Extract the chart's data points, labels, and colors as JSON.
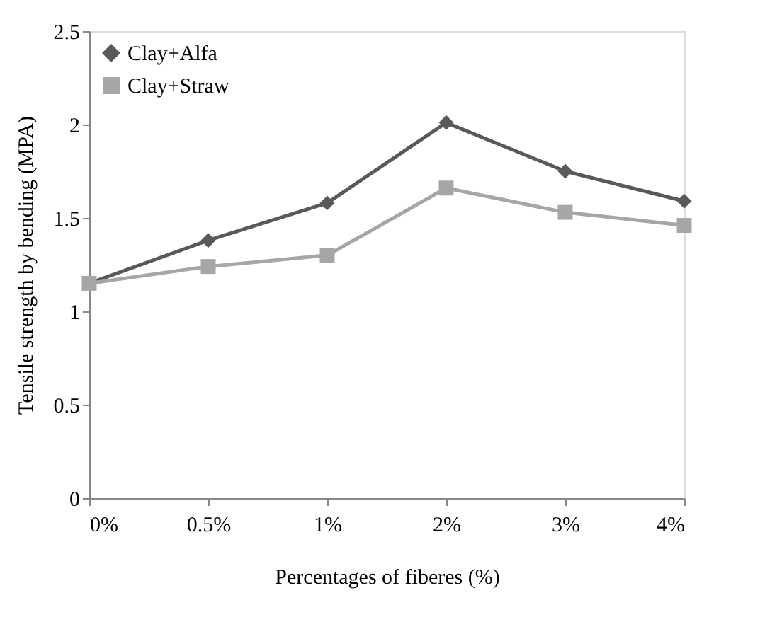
{
  "chart_data": {
    "type": "line",
    "xlabel": "Percentages of fiberes (%)",
    "ylabel": "Tensile strength by bending  (MPA)",
    "categories": [
      "0%",
      "0.5%",
      "1%",
      "2%",
      "3%",
      "4%"
    ],
    "series": [
      {
        "name": "Clay+Alfa",
        "color": "#595959",
        "marker": "diamond",
        "values": [
          1.15,
          1.38,
          1.58,
          2.01,
          1.75,
          1.59
        ]
      },
      {
        "name": "Clay+Straw",
        "color": "#a6a6a6",
        "marker": "square",
        "values": [
          1.15,
          1.24,
          1.3,
          1.66,
          1.53,
          1.46
        ]
      }
    ],
    "ylim": [
      0,
      2.5
    ],
    "yticks": [
      0,
      0.5,
      1,
      1.5,
      2,
      2.5
    ],
    "grid": false,
    "legend": "top left",
    "line_style": "solid"
  }
}
